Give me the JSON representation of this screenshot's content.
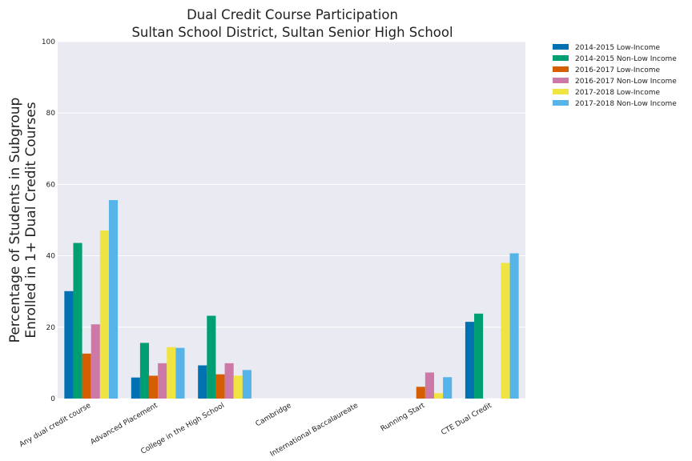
{
  "chart_data": {
    "type": "bar",
    "title_lines": [
      "Dual Credit Course Participation",
      "Sultan School District, Sultan Senior High School"
    ],
    "xlabel": "",
    "ylabel_lines": [
      "Percentage of Students in Subgroup",
      "Enrolled in 1+ Dual Credit Courses"
    ],
    "ylim": [
      0,
      100
    ],
    "yticks": [
      "0",
      "20",
      "40",
      "60",
      "80",
      "100"
    ],
    "grid": true,
    "legend_position": "outside-top-right",
    "categories": [
      "Any dual credit course",
      "Advanced Placement",
      "College in the High School",
      "Cambridge",
      "International Baccalaureate",
      "Running Start",
      "CTE Dual Credit"
    ],
    "series": [
      {
        "name": "2014-2015 Low-Income",
        "color": "#0072b2",
        "values": [
          30.1,
          5.9,
          9.3,
          null,
          null,
          null,
          21.5
        ]
      },
      {
        "name": "2014-2015 Non-Low Income",
        "color": "#009e73",
        "values": [
          43.6,
          15.6,
          23.2,
          null,
          null,
          null,
          23.8
        ]
      },
      {
        "name": "2016-2017 Low-Income",
        "color": "#d55e00",
        "values": [
          12.6,
          6.4,
          6.8,
          null,
          null,
          3.3,
          null
        ]
      },
      {
        "name": "2016-2017 Non-Low Income",
        "color": "#cc79a7",
        "values": [
          20.8,
          9.9,
          9.9,
          null,
          null,
          7.3,
          null
        ]
      },
      {
        "name": "2017-2018 Low-Income",
        "color": "#f0e442",
        "values": [
          47.1,
          14.4,
          6.4,
          null,
          null,
          1.5,
          38.0
        ]
      },
      {
        "name": "2017-2018 Non-Low Income",
        "color": "#56b4e9",
        "values": [
          55.6,
          14.2,
          8.0,
          null,
          null,
          6.0,
          40.7
        ]
      }
    ]
  }
}
